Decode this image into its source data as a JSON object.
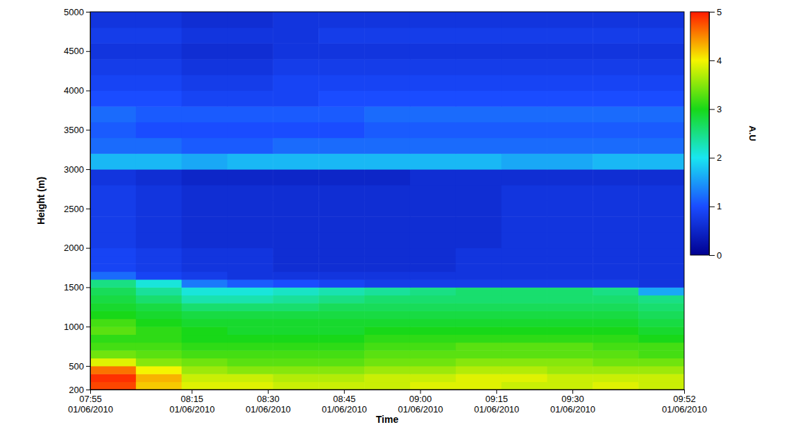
{
  "chart_data": {
    "type": "heatmap",
    "xlabel": "Time",
    "ylabel": "Height (m)",
    "xlim": [
      "2010-06-01T07:55",
      "2010-06-01T09:52"
    ],
    "xticks": [
      {
        "value": "2010-06-01T07:55",
        "label": "07:55\n01/06/2010"
      },
      {
        "value": "2010-06-01T08:15",
        "label": "08:15\n01/06/2010"
      },
      {
        "value": "2010-06-01T08:30",
        "label": "08:30\n01/06/2010"
      },
      {
        "value": "2010-06-01T08:45",
        "label": "08:45\n01/06/2010"
      },
      {
        "value": "2010-06-01T09:00",
        "label": "09:00\n01/06/2010"
      },
      {
        "value": "2010-06-01T09:15",
        "label": "09:15\n01/06/2010"
      },
      {
        "value": "2010-06-01T09:30",
        "label": "09:30\n01/06/2010"
      },
      {
        "value": "2010-06-01T09:52",
        "label": "09:52\n01/06/2010"
      }
    ],
    "ylim": [
      200,
      5000
    ],
    "yticks": [
      200,
      500,
      1000,
      1500,
      2000,
      2500,
      3000,
      3500,
      4000,
      4500,
      5000
    ],
    "x_bins": [
      "2010-06-01T07:55",
      "2010-06-01T08:04",
      "2010-06-01T08:13",
      "2010-06-01T08:22",
      "2010-06-01T08:31",
      "2010-06-01T08:40",
      "2010-06-01T08:49",
      "2010-06-01T08:58",
      "2010-06-01T09:07",
      "2010-06-01T09:16",
      "2010-06-01T09:25",
      "2010-06-01T09:34",
      "2010-06-01T09:43",
      "2010-06-01T09:52"
    ],
    "y_bins": [
      200,
      300,
      400,
      500,
      600,
      700,
      800,
      900,
      1000,
      1100,
      1200,
      1300,
      1400,
      1500,
      1600,
      1700,
      1800,
      1900,
      2000,
      2200,
      2400,
      2600,
      2800,
      3000,
      3200,
      3400,
      3600,
      3800,
      4000,
      4200,
      4400,
      4600,
      4800,
      5000
    ],
    "values": [
      [
        4.8,
        4.2,
        3.9,
        3.9,
        3.8,
        3.8,
        3.8,
        3.9,
        3.9,
        3.8,
        3.8,
        3.9,
        3.8
      ],
      [
        4.9,
        4.3,
        3.8,
        3.8,
        3.7,
        3.7,
        3.8,
        3.8,
        3.9,
        3.9,
        3.8,
        3.8,
        3.8
      ],
      [
        4.6,
        4.0,
        3.6,
        3.5,
        3.5,
        3.5,
        3.6,
        3.6,
        3.7,
        3.7,
        3.6,
        3.6,
        3.6
      ],
      [
        3.9,
        3.5,
        3.4,
        3.3,
        3.3,
        3.3,
        3.4,
        3.4,
        3.5,
        3.5,
        3.5,
        3.4,
        3.4
      ],
      [
        3.4,
        3.3,
        3.2,
        3.2,
        3.2,
        3.2,
        3.3,
        3.3,
        3.3,
        3.3,
        3.3,
        3.3,
        3.2
      ],
      [
        3.2,
        3.2,
        3.1,
        3.1,
        3.1,
        3.1,
        3.2,
        3.2,
        3.3,
        3.3,
        3.3,
        3.2,
        3.2
      ],
      [
        3.1,
        3.1,
        3.0,
        3.0,
        3.0,
        3.0,
        3.1,
        3.1,
        3.1,
        3.1,
        3.1,
        3.1,
        3.0
      ],
      [
        3.3,
        3.1,
        3.0,
        2.9,
        2.9,
        2.9,
        3.0,
        3.0,
        3.0,
        3.0,
        3.0,
        3.0,
        2.9
      ],
      [
        3.2,
        3.0,
        2.9,
        2.9,
        2.9,
        2.9,
        2.9,
        2.9,
        2.9,
        2.9,
        2.9,
        2.9,
        2.8
      ],
      [
        3.0,
        2.9,
        2.8,
        2.8,
        2.8,
        2.8,
        2.8,
        2.8,
        2.8,
        2.8,
        2.8,
        2.8,
        2.7
      ],
      [
        2.9,
        2.8,
        2.6,
        2.6,
        2.6,
        2.7,
        2.7,
        2.7,
        2.7,
        2.7,
        2.7,
        2.7,
        2.6
      ],
      [
        2.8,
        2.6,
        2.3,
        2.3,
        2.4,
        2.5,
        2.6,
        2.6,
        2.6,
        2.6,
        2.6,
        2.6,
        2.5
      ],
      [
        2.7,
        2.4,
        2.1,
        2.1,
        2.2,
        2.3,
        2.4,
        2.5,
        2.6,
        2.6,
        2.6,
        2.5,
        1.6
      ],
      [
        2.5,
        2.1,
        1.3,
        1.1,
        1.0,
        0.9,
        0.8,
        0.8,
        0.8,
        0.8,
        0.8,
        0.8,
        0.7
      ],
      [
        1.2,
        0.9,
        0.8,
        0.7,
        0.7,
        0.7,
        0.7,
        0.7,
        0.7,
        0.7,
        0.7,
        0.7,
        0.7
      ],
      [
        0.9,
        0.8,
        0.7,
        0.7,
        0.6,
        0.6,
        0.6,
        0.6,
        0.7,
        0.7,
        0.7,
        0.7,
        0.7
      ],
      [
        0.9,
        0.8,
        0.7,
        0.7,
        0.6,
        0.6,
        0.6,
        0.6,
        0.7,
        0.7,
        0.7,
        0.7,
        0.7
      ],
      [
        0.9,
        0.8,
        0.7,
        0.7,
        0.6,
        0.6,
        0.6,
        0.6,
        0.7,
        0.7,
        0.7,
        0.7,
        0.7
      ],
      [
        0.8,
        0.7,
        0.6,
        0.6,
        0.6,
        0.6,
        0.6,
        0.6,
        0.6,
        0.7,
        0.7,
        0.7,
        0.7
      ],
      [
        0.8,
        0.7,
        0.6,
        0.6,
        0.6,
        0.6,
        0.6,
        0.6,
        0.6,
        0.7,
        0.7,
        0.7,
        0.7
      ],
      [
        0.8,
        0.7,
        0.6,
        0.6,
        0.6,
        0.6,
        0.6,
        0.6,
        0.6,
        0.7,
        0.7,
        0.7,
        0.7
      ],
      [
        0.8,
        0.7,
        0.6,
        0.6,
        0.6,
        0.6,
        0.6,
        0.6,
        0.6,
        0.7,
        0.7,
        0.7,
        0.7
      ],
      [
        0.7,
        0.6,
        0.5,
        0.5,
        0.5,
        0.5,
        0.5,
        0.6,
        0.6,
        0.6,
        0.6,
        0.6,
        0.6
      ],
      [
        1.7,
        1.7,
        1.6,
        1.7,
        1.7,
        1.7,
        1.7,
        1.7,
        1.7,
        1.6,
        1.6,
        1.7,
        1.7
      ],
      [
        1.2,
        1.2,
        1.1,
        1.1,
        1.2,
        1.2,
        1.2,
        1.2,
        1.2,
        1.2,
        1.2,
        1.2,
        1.2
      ],
      [
        1.1,
        1.0,
        1.0,
        1.0,
        1.0,
        1.0,
        1.1,
        1.1,
        1.1,
        1.1,
        1.1,
        1.1,
        1.1
      ],
      [
        1.2,
        1.1,
        1.1,
        1.1,
        1.1,
        1.1,
        1.2,
        1.2,
        1.2,
        1.2,
        1.2,
        1.2,
        1.2
      ],
      [
        1.0,
        1.0,
        0.9,
        0.9,
        0.9,
        1.0,
        1.0,
        1.0,
        1.0,
        1.0,
        1.0,
        1.0,
        1.0
      ],
      [
        0.9,
        0.9,
        0.8,
        0.8,
        0.9,
        0.9,
        0.9,
        0.9,
        0.9,
        0.9,
        0.9,
        0.9,
        0.9
      ],
      [
        0.8,
        0.8,
        0.7,
        0.7,
        0.8,
        0.8,
        0.8,
        0.8,
        0.8,
        0.8,
        0.8,
        0.8,
        0.8
      ],
      [
        0.7,
        0.7,
        0.6,
        0.6,
        0.7,
        0.7,
        0.7,
        0.7,
        0.7,
        0.7,
        0.7,
        0.7,
        0.7
      ],
      [
        0.8,
        0.8,
        0.7,
        0.7,
        0.7,
        0.8,
        0.8,
        0.8,
        0.8,
        0.8,
        0.8,
        0.8,
        0.8
      ],
      [
        0.7,
        0.7,
        0.6,
        0.6,
        0.7,
        0.7,
        0.7,
        0.7,
        0.7,
        0.7,
        0.7,
        0.7,
        0.7
      ]
    ],
    "colorbar": {
      "range": [
        0,
        5
      ],
      "ticks": [
        0,
        1,
        2,
        3,
        4,
        5
      ],
      "label": "A.U"
    }
  }
}
